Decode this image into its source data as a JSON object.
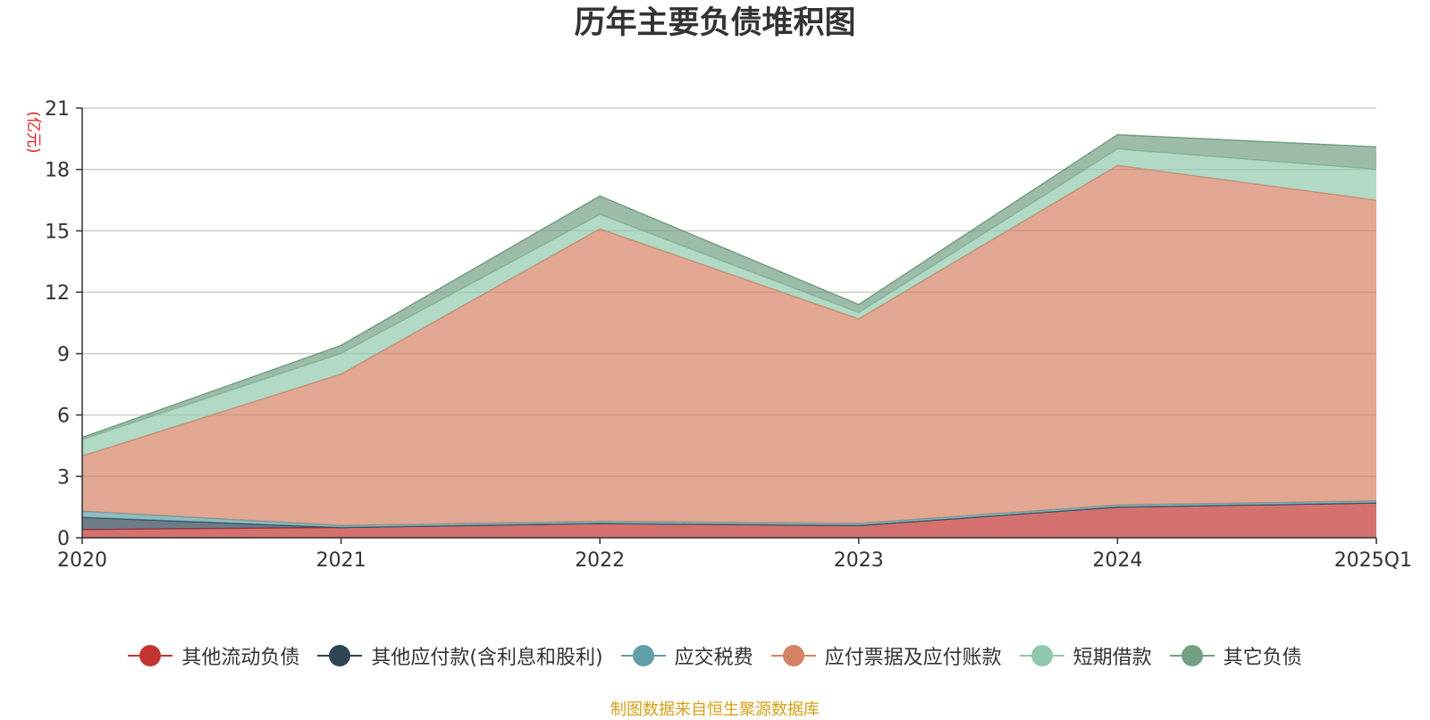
{
  "chart_data": {
    "type": "area",
    "title": "历年主要负债堆积图",
    "ylabel": "(亿元)",
    "categories": [
      "2020",
      "2021",
      "2022",
      "2023",
      "2024",
      "2025Q1"
    ],
    "ylim": [
      0,
      21
    ],
    "yticks": [
      0,
      3,
      6,
      9,
      12,
      15,
      18,
      21
    ],
    "stacked": true,
    "grid": true,
    "legend_position": "bottom",
    "series": [
      {
        "name": "其他流动负债",
        "color": "#c23531",
        "values": [
          0.4,
          0.5,
          0.7,
          0.6,
          1.5,
          1.7
        ]
      },
      {
        "name": "其他应付款(含利息和股利)",
        "color": "#2f4554",
        "values": [
          0.6,
          0.0,
          0.0,
          0.0,
          0.0,
          0.0
        ]
      },
      {
        "name": "应交税费",
        "color": "#61a0a8",
        "values": [
          0.3,
          0.1,
          0.1,
          0.1,
          0.1,
          0.1
        ]
      },
      {
        "name": "应付票据及应付账款",
        "color": "#d48265",
        "values": [
          2.7,
          7.4,
          14.3,
          10.0,
          16.6,
          14.7
        ]
      },
      {
        "name": "短期借款",
        "color": "#91c7ae",
        "values": [
          0.8,
          1.0,
          0.7,
          0.3,
          0.8,
          1.5
        ]
      },
      {
        "name": "其它负债",
        "color": "#749f83",
        "values": [
          0.1,
          0.4,
          0.9,
          0.4,
          0.7,
          1.1
        ]
      }
    ]
  },
  "footer": {
    "source": "制图数据来自恒生聚源数据库"
  }
}
